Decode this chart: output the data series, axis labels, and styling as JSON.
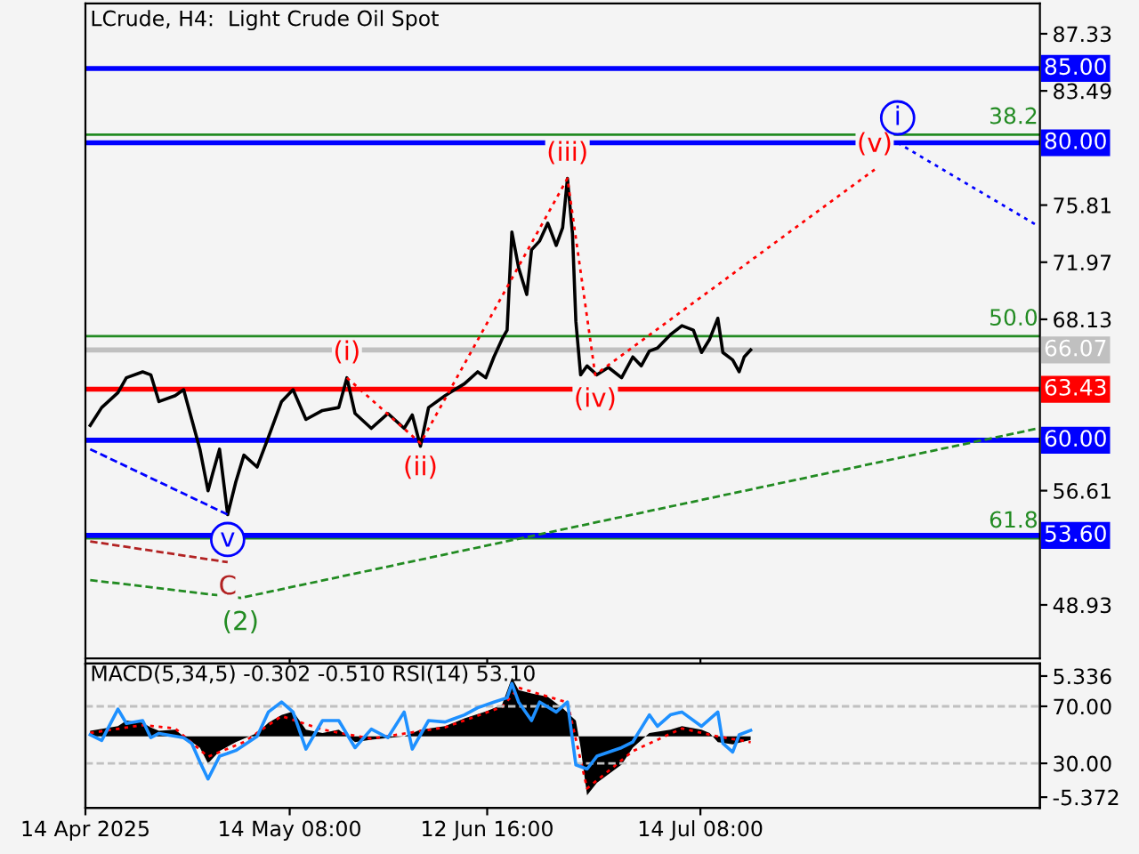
{
  "chart_data": [
    {
      "type": "line",
      "title": "LCrude, H4:  Light Crude Oil Spot",
      "xlim": [
        "2025-04-14T00:00",
        "2025-09-02T18:00"
      ],
      "xticks": [
        {
          "value": "2025-04-14T00:00",
          "label": null
        },
        {
          "value": "2025-05-14T08:00",
          "label": null
        },
        {
          "value": "2025-06-12T16:00",
          "label": null
        },
        {
          "value": "2025-07-14T08:00",
          "label": null
        }
      ],
      "ylim": [
        45.33,
        89.37
      ],
      "yticks": [
        87.33,
        83.49,
        75.81,
        71.97,
        68.13,
        56.61,
        48.93
      ],
      "tick_labels": "y",
      "series": [
        {
          "color": "#000000",
          "line_style": "solid",
          "x": [
            "2025-04-14T17:00",
            "2025-04-16T10:00",
            "2025-04-18T20:00",
            "2025-04-20T02:00",
            "2025-04-22T12:00",
            "2025-04-23T17:00",
            "2025-04-24T22:00",
            "2025-04-27T08:00",
            "2025-04-28T14:00",
            "2025-04-29T19:00",
            "2025-05-01T00:00",
            "2025-05-02T05:00",
            "2025-05-02T22:00",
            "2025-05-03T22:00",
            "2025-05-05T03:00",
            "2025-05-06T08:00",
            "2025-05-07T13:00",
            "2025-05-09T12:00",
            "2025-05-11T04:00",
            "2025-05-13T03:00",
            "2025-05-14T20:00",
            "2025-05-16T18:00",
            "2025-05-19T05:00",
            "2025-05-21T15:00",
            "2025-05-22T20:00",
            "2025-05-24T01:00",
            "2025-05-26T11:00",
            "2025-05-28T22:00",
            "2025-05-31T08:00",
            "2025-06-01T13:00",
            "2025-06-02T18:00",
            "2025-06-03T23:00",
            "2025-06-06T10:00",
            "2025-06-09T07:00",
            "2025-06-11T06:00",
            "2025-06-12T11:00",
            "2025-06-13T16:00",
            "2025-06-14T21:00",
            "2025-06-15T15:00",
            "2025-06-16T08:00",
            "2025-06-17T08:00",
            "2025-06-18T13:00",
            "2025-06-19T06:00",
            "2025-06-20T11:00",
            "2025-06-21T16:00",
            "2025-06-22T22:00",
            "2025-06-23T21:00",
            "2025-06-24T14:00",
            "2025-06-25T08:00",
            "2025-06-25T20:00",
            "2025-06-26T13:00",
            "2025-06-27T12:00",
            "2025-06-28T23:00",
            "2025-06-30T16:00",
            "2025-07-02T15:00",
            "2025-07-04T07:00",
            "2025-07-05T13:00",
            "2025-07-06T18:00",
            "2025-07-07T23:00",
            "2025-07-09T21:00",
            "2025-07-11T14:00",
            "2025-07-13T07:00",
            "2025-07-14T12:00",
            "2025-07-15T17:00",
            "2025-07-16T22:00",
            "2025-07-17T16:00",
            "2025-07-19T03:00",
            "2025-07-20T02:00",
            "2025-07-20T20:00",
            "2025-07-21T19:00"
          ],
          "values": [
            61.0,
            62.2,
            63.2,
            64.2,
            64.6,
            64.4,
            62.6,
            63.0,
            63.4,
            61.4,
            59.4,
            56.6,
            57.8,
            59.4,
            55.0,
            57.2,
            59.0,
            58.2,
            60.2,
            62.6,
            63.4,
            61.4,
            62.0,
            62.2,
            64.2,
            61.8,
            60.8,
            61.8,
            60.8,
            61.7,
            59.6,
            62.2,
            63.0,
            63.8,
            64.6,
            64.2,
            65.6,
            66.8,
            67.4,
            74.0,
            71.6,
            69.8,
            72.8,
            73.4,
            74.6,
            73.1,
            74.3,
            77.6,
            73.9,
            68.0,
            64.4,
            65.0,
            64.4,
            64.9,
            64.2,
            65.6,
            65.0,
            66.0,
            66.2,
            67.1,
            67.7,
            67.4,
            65.9,
            66.8,
            68.2,
            65.9,
            65.4,
            64.6,
            65.6,
            66.07
          ]
        },
        {
          "color": "#0000ff",
          "line_style": "dashed",
          "x": [
            "2025-04-14T17:00",
            "2025-05-05T03:00"
          ],
          "values": [
            59.4,
            55.0
          ]
        },
        {
          "color": "#0000ff",
          "line_style": "dotted",
          "x": [
            "2025-08-12T15:00",
            "2025-09-02T12:00"
          ],
          "values": [
            80.0,
            74.4
          ]
        },
        {
          "color": "#ff0000",
          "line_style": "dotted",
          "x": [
            "2025-05-22T20:00",
            "2025-06-02T18:00",
            "2025-06-24T14:00",
            "2025-06-28T17:00",
            "2025-08-09T05:00"
          ],
          "values": [
            64.2,
            59.8,
            77.6,
            64.4,
            78.2
          ]
        },
        {
          "color": "#b22222",
          "line_style": "dashed",
          "x": [
            "2025-04-14T17:00",
            "2025-05-05T03:00"
          ],
          "values": [
            53.2,
            51.8
          ]
        },
        {
          "color": "#228b22",
          "line_style": "dashed",
          "x": [
            "2025-04-14T17:00",
            "2025-05-07T01:00",
            "2025-09-02T12:00"
          ],
          "values": [
            50.6,
            49.4,
            60.8
          ]
        }
      ],
      "ref_lines": [
        {
          "axis": "y",
          "value": 80.55,
          "color": "#228b22"
        },
        {
          "axis": "y",
          "value": 67.0,
          "color": "#228b22"
        },
        {
          "axis": "y",
          "value": 53.4,
          "color": "#228b22"
        },
        {
          "axis": "y",
          "value": 66.07,
          "label": "66.07",
          "color": "#c0c0c0"
        },
        {
          "axis": "y",
          "value": 85.0,
          "label": "85.00",
          "color": "#0000ff"
        },
        {
          "axis": "y",
          "value": 80.0,
          "label": "80.00",
          "color": "#0000ff"
        },
        {
          "axis": "y",
          "value": 60.0,
          "label": "60.00",
          "color": "#0000ff"
        },
        {
          "axis": "y",
          "value": 53.6,
          "label": "53.60",
          "color": "#0000ff"
        },
        {
          "axis": "y",
          "value": 63.43,
          "label": "63.43",
          "color": "#ff0000"
        }
      ],
      "annotations": [
        {
          "text": "(i)",
          "x": "2025-05-22T20:00",
          "y": 64.2
        },
        {
          "text": "(ii)",
          "x": "2025-06-02T18:00",
          "y": 59.8
        },
        {
          "text": "(iii)",
          "x": "2025-06-24T14:00",
          "y": 77.6
        },
        {
          "text": "(iv)",
          "x": "2025-06-28T17:00",
          "y": 64.4
        },
        {
          "text": "(v)",
          "x": "2025-08-09T05:00",
          "y": 78.2
        },
        {
          "text": "i",
          "x": "2025-08-12T15:00",
          "y": 80.0
        },
        {
          "text": "v",
          "x": "2025-05-05T03:00",
          "y": 55.0
        },
        {
          "text": "C",
          "x": "2025-05-05T03:00",
          "y": 51.8
        },
        {
          "text": "(2)",
          "x": "2025-05-07T01:00",
          "y": 49.4
        },
        {
          "text": "38.2",
          "x": "2025-09-02T12:00",
          "y": 80.55
        },
        {
          "text": "50.0",
          "x": "2025-09-02T12:00",
          "y": 67.0
        },
        {
          "text": "61.8",
          "x": "2025-09-02T12:00",
          "y": 53.4
        }
      ]
    },
    {
      "type": "line",
      "title": "MACD(5,34,5) -0.302 -0.510 RSI(14) 53.10",
      "xlim": [
        "2025-04-14T00:00",
        "2025-09-02T18:00"
      ],
      "xticks": [
        {
          "value": "2025-04-14T00:00",
          "label": "14 Apr 2025"
        },
        {
          "value": "2025-05-14T08:00",
          "label": "14 May 08:00"
        },
        {
          "value": "2025-06-12T16:00",
          "label": "12 Jun 16:00"
        },
        {
          "value": "2025-07-14T08:00",
          "label": "14 Jul 08:00"
        }
      ],
      "ylim": [
        -6.32,
        6.44
      ],
      "yticks": [
        5.336,
        -5.372
      ],
      "y2lim": [
        -1.25,
        100
      ],
      "y2ticks": [
        {
          "value": 70,
          "label": "70.00"
        },
        {
          "value": 30,
          "label": "30.00"
        }
      ],
      "series": [
        {
          "type": "area",
          "color": "#000000",
          "x": [
            "2025-04-14T17:00",
            "2025-04-18T20:00",
            "2025-04-20T02:00",
            "2025-04-22T12:00",
            "2025-04-23T17:00",
            "2025-04-24T22:00",
            "2025-04-27T08:00",
            "2025-04-28T14:00",
            "2025-05-01T00:00",
            "2025-05-02T05:00",
            "2025-05-03T22:00",
            "2025-05-06T08:00",
            "2025-05-09T12:00",
            "2025-05-11T04:00",
            "2025-05-13T03:00",
            "2025-05-14T20:00",
            "2025-05-16T18:00",
            "2025-05-19T05:00",
            "2025-05-21T15:00",
            "2025-05-24T01:00",
            "2025-05-26T11:00",
            "2025-05-31T08:00",
            "2025-06-02T18:00",
            "2025-06-06T10:00",
            "2025-06-09T07:00",
            "2025-06-12T11:00",
            "2025-06-14T21:00",
            "2025-06-16T08:00",
            "2025-06-17T08:00",
            "2025-06-19T06:00",
            "2025-06-21T16:00",
            "2025-06-23T21:00",
            "2025-06-25T20:00",
            "2025-06-26T13:00",
            "2025-06-27T12:00",
            "2025-06-28T23:00",
            "2025-07-02T15:00",
            "2025-07-04T07:00",
            "2025-07-06T18:00",
            "2025-07-09T21:00",
            "2025-07-11T14:00",
            "2025-07-14T12:00",
            "2025-07-15T17:00",
            "2025-07-16T22:00",
            "2025-07-19T03:00",
            "2025-07-21T19:00"
          ],
          "values": [
            0.5,
            0.9,
            1.4,
            1.2,
            0.8,
            0.5,
            0.6,
            0,
            -1.0,
            -2.4,
            -1.3,
            -0.5,
            0.3,
            1.2,
            1.9,
            2.2,
            0.6,
            0.3,
            0.6,
            -0.5,
            -0.3,
            0,
            0.6,
            0.9,
            1.6,
            2.2,
            2.8,
            5.2,
            4.1,
            3.8,
            3.5,
            2.5,
            1.4,
            -1.0,
            -5.2,
            -4.1,
            -2.5,
            -1.0,
            0.3,
            0.6,
            0.9,
            0.6,
            0.3,
            -0.5,
            -0.7,
            -0.302
          ]
        },
        {
          "type": "line",
          "color": "#ff0000",
          "line_style": "dotted",
          "x": [
            "2025-04-14T17:00",
            "2025-04-22T12:00",
            "2025-04-27T08:00",
            "2025-05-02T05:00",
            "2025-05-07T13:00",
            "2025-05-13T03:00",
            "2025-05-19T05:00",
            "2025-05-26T11:00",
            "2025-06-06T10:00",
            "2025-06-14T21:00",
            "2025-06-17T08:00",
            "2025-06-24T14:00",
            "2025-06-27T12:00",
            "2025-07-04T07:00",
            "2025-07-11T14:00",
            "2025-07-16T22:00",
            "2025-07-21T19:00"
          ],
          "values": [
            0.3,
            1.0,
            0.7,
            -1.8,
            -0.5,
            1.8,
            0.6,
            -0.2,
            0.8,
            2.6,
            4.3,
            3.0,
            -4.6,
            -1.3,
            0.7,
            0,
            -0.51
          ]
        },
        {
          "type": "line",
          "axis": "y2",
          "color": "#1e90ff",
          "line_style": "solid",
          "x": [
            "2025-04-14T17:00",
            "2025-04-16T10:00",
            "2025-04-18T20:00",
            "2025-04-20T02:00",
            "2025-04-22T12:00",
            "2025-04-23T17:00",
            "2025-04-24T22:00",
            "2025-04-28T14:00",
            "2025-04-29T19:00",
            "2025-05-01T00:00",
            "2025-05-02T05:00",
            "2025-05-03T22:00",
            "2025-05-06T08:00",
            "2025-05-09T12:00",
            "2025-05-11T04:00",
            "2025-05-13T03:00",
            "2025-05-14T20:00",
            "2025-05-16T18:00",
            "2025-05-19T05:00",
            "2025-05-21T15:00",
            "2025-05-24T01:00",
            "2025-05-26T11:00",
            "2025-05-28T22:00",
            "2025-05-31T08:00",
            "2025-06-01T13:00",
            "2025-06-03T23:00",
            "2025-06-06T10:00",
            "2025-06-09T07:00",
            "2025-06-11T06:00",
            "2025-06-13T16:00",
            "2025-06-15T15:00",
            "2025-06-16T08:00",
            "2025-06-17T08:00",
            "2025-06-19T06:00",
            "2025-06-20T11:00",
            "2025-06-22T22:00",
            "2025-06-24T14:00",
            "2025-06-25T20:00",
            "2025-06-27T12:00",
            "2025-06-28T23:00",
            "2025-07-02T15:00",
            "2025-07-04T07:00",
            "2025-07-06T18:00",
            "2025-07-07T23:00",
            "2025-07-09T21:00",
            "2025-07-11T14:00",
            "2025-07-14T12:00",
            "2025-07-16T22:00",
            "2025-07-17T16:00",
            "2025-07-19T03:00",
            "2025-07-20T02:00",
            "2025-07-21T19:00"
          ],
          "values": [
            50,
            46,
            68,
            58,
            60,
            48,
            51,
            48,
            44,
            31,
            19,
            35,
            39,
            49,
            66,
            73,
            66,
            40,
            60,
            60,
            41,
            54,
            48,
            66,
            40,
            60,
            59,
            64,
            69,
            73,
            76,
            86,
            73,
            60,
            73,
            66,
            73,
            29,
            26,
            35,
            41,
            45,
            64,
            56,
            64,
            66,
            56,
            66,
            44,
            38,
            50,
            53.1
          ]
        }
      ],
      "ref_lines": [
        {
          "axis": "y2",
          "value": 70,
          "color": "#c0c0c0",
          "line_style": "dashed"
        },
        {
          "axis": "y2",
          "value": 30,
          "color": "#c0c0c0",
          "line_style": "dashed"
        }
      ]
    }
  ]
}
